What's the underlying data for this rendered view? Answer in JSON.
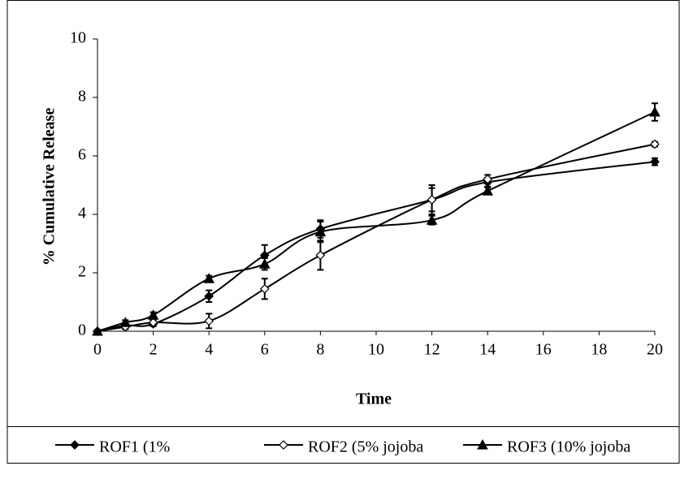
{
  "chart_data": {
    "type": "line",
    "x_label": "Time",
    "y_label": "% Cumulative Release",
    "x": [
      0,
      1,
      2,
      4,
      6,
      8,
      12,
      14,
      20
    ],
    "series": [
      {
        "name": "ROF1 (1%",
        "color": "#000000",
        "marker": "diamond-filled",
        "values": [
          0,
          0.2,
          0.25,
          1.2,
          2.6,
          3.5,
          4.5,
          5.1,
          5.8
        ],
        "errors": [
          0.05,
          0.1,
          0.08,
          0.2,
          0.35,
          0.3,
          0.5,
          0.15,
          0.12
        ]
      },
      {
        "name": "ROF2 (5% jojoba",
        "color": "#000000",
        "marker": "diamond-open",
        "values": [
          0,
          0.15,
          0.3,
          0.35,
          1.45,
          2.6,
          4.5,
          5.2,
          6.4
        ],
        "errors": [
          0.05,
          0.08,
          0.08,
          0.25,
          0.35,
          0.5,
          0.4,
          0.15,
          0.08
        ]
      },
      {
        "name": "ROF3 (10% jojoba",
        "color": "#000000",
        "marker": "triangle",
        "values": [
          0,
          0.3,
          0.55,
          1.8,
          2.3,
          3.4,
          3.8,
          4.8,
          7.5
        ],
        "errors": [
          0.05,
          0.08,
          0.1,
          0.1,
          0.2,
          0.35,
          0.15,
          0.12,
          0.3
        ]
      }
    ],
    "xlim": [
      0,
      20
    ],
    "xticks": [
      0,
      2,
      4,
      6,
      8,
      10,
      12,
      14,
      16,
      18,
      20
    ],
    "ylim": [
      0,
      10
    ],
    "yticks": [
      0,
      2,
      4,
      6,
      8,
      10
    ],
    "grid": false,
    "legend": "bottom",
    "smooth": true
  }
}
